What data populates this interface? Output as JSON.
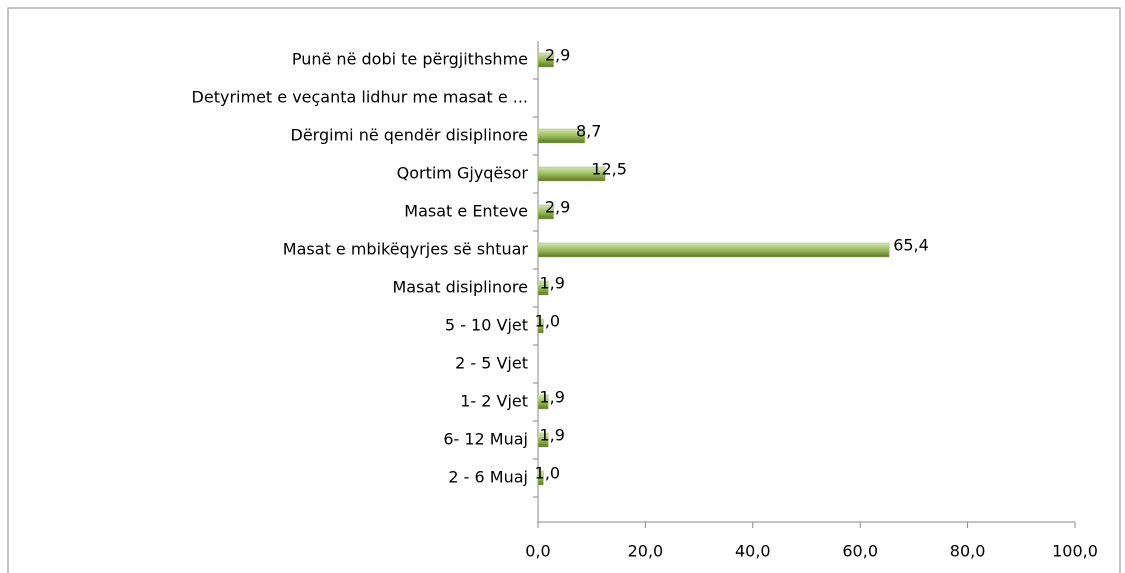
{
  "chart_data": {
    "type": "hbar",
    "categories": [
      "Punë në dobi te përgjithshme",
      "Detyrimet e veçanta lidhur me masat e ...",
      "Dërgimi në qendër disiplinore",
      "Qortim Gjyqësor",
      "Masat e Enteve",
      "Masat e mbikëqyrjes së shtuar",
      "Masat disiplinore",
      "5 - 10 Vjet",
      "2 -  5 Vjet",
      "1- 2 Vjet",
      "6- 12 Muaj",
      "2 -  6 Muaj"
    ],
    "values": [
      2.9,
      null,
      8.7,
      12.5,
      2.9,
      65.4,
      1.9,
      1.0,
      null,
      1.9,
      1.9,
      1.0
    ],
    "value_labels": [
      "2,9",
      null,
      "8,7",
      "12,5",
      "2,9",
      "65,4",
      "1,9",
      "1,0",
      null,
      "1,9",
      "1,9",
      "1,0"
    ],
    "color": "#9bbb59",
    "xlim": [
      0,
      100
    ],
    "xticks": [
      {
        "value": 0,
        "label": "0,0"
      },
      {
        "value": 20,
        "label": "20,0"
      },
      {
        "value": 40,
        "label": "40,0"
      },
      {
        "value": 60,
        "label": "60,0"
      },
      {
        "value": 80,
        "label": "80,0"
      },
      {
        "value": 100,
        "label": "100,0"
      }
    ]
  }
}
